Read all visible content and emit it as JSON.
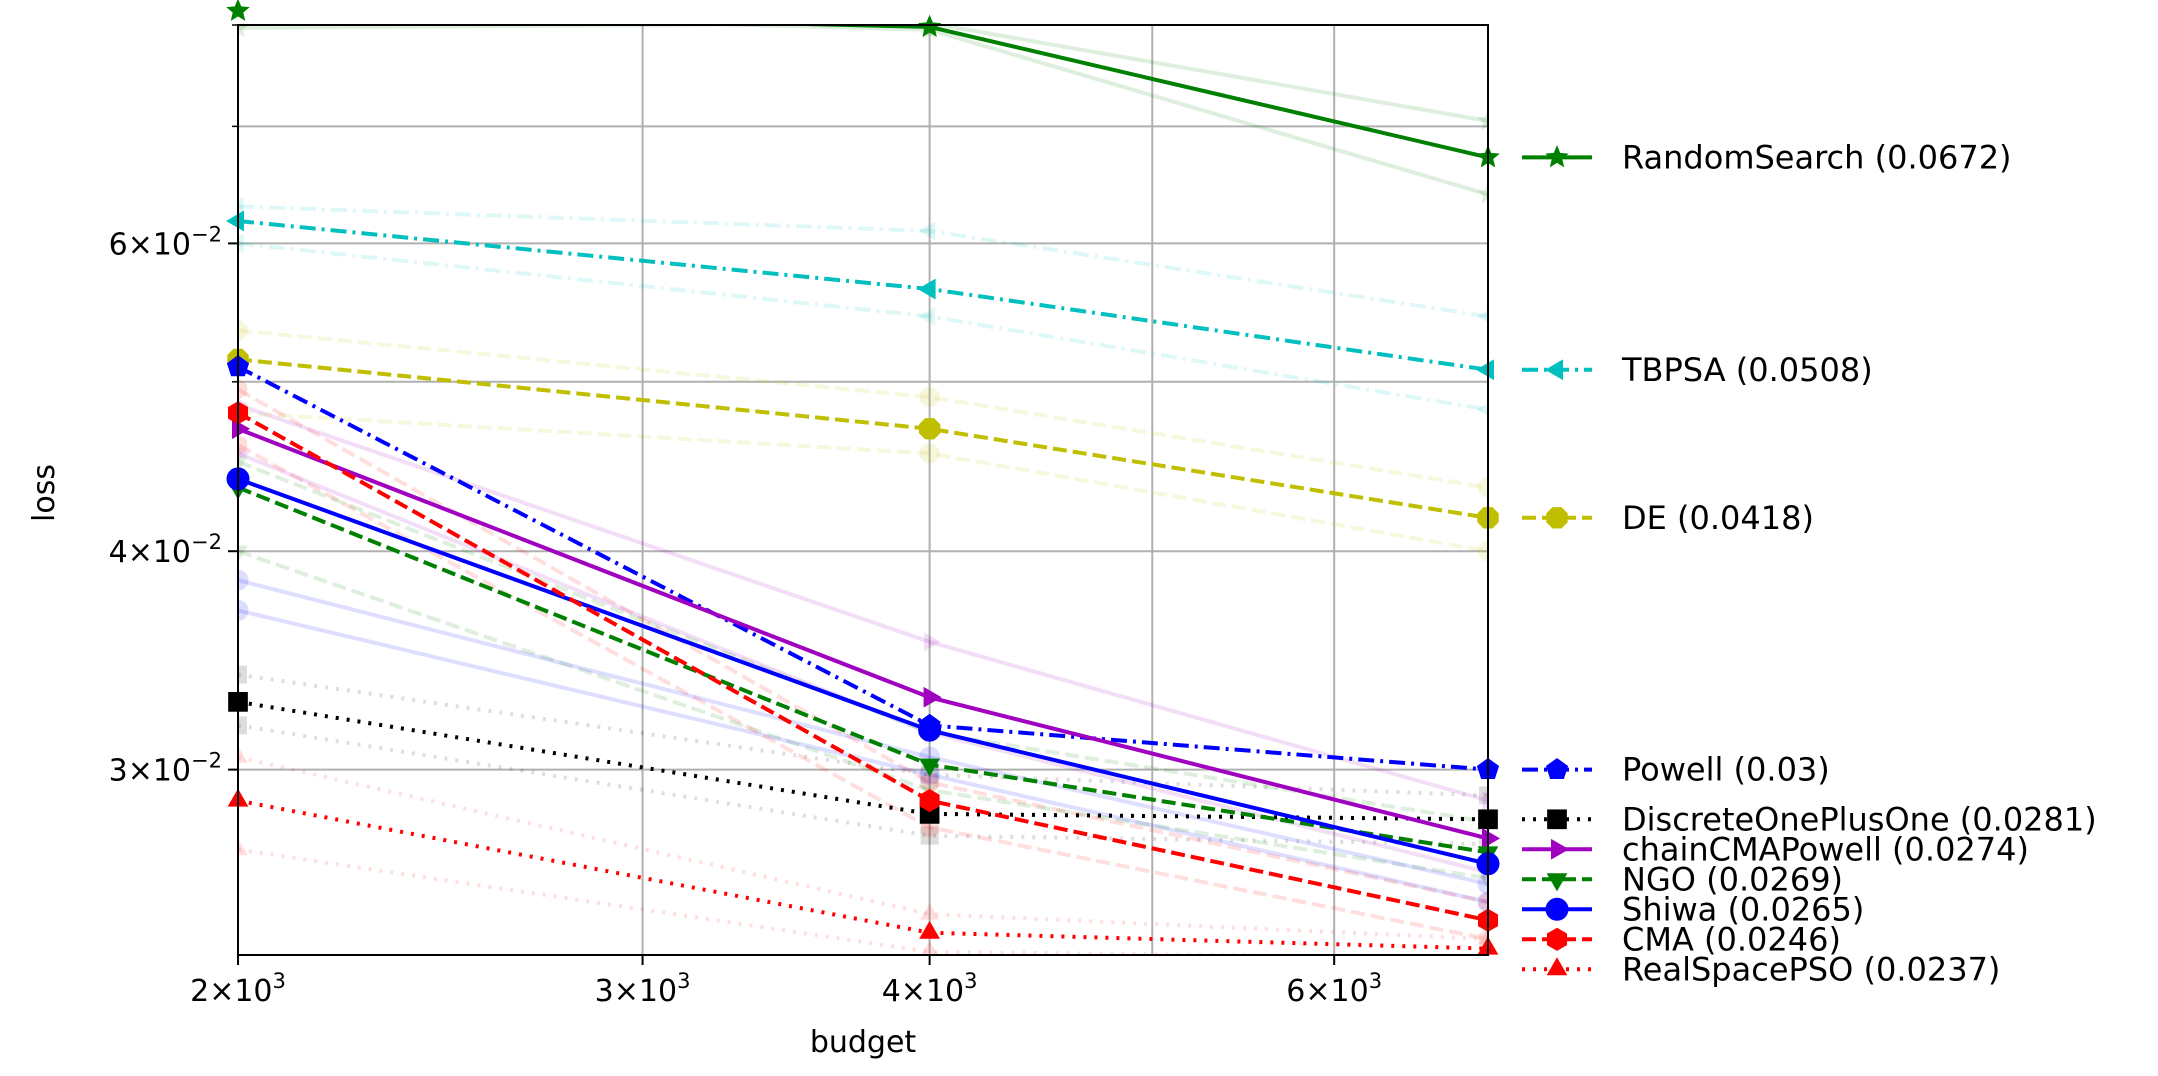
{
  "chart_data": {
    "type": "line",
    "title": "",
    "xlabel": "budget",
    "ylabel": "loss",
    "xscale": "log",
    "yscale": "log",
    "xlim": [
      2000,
      7000
    ],
    "ylim": [
      0.0235,
      0.08
    ],
    "grid": true,
    "legend_placement": "right-outside",
    "x": [
      2000,
      4000,
      7000
    ],
    "x_ticks": [
      {
        "value": 2000,
        "mantissa": "2",
        "exp": "3"
      },
      {
        "value": 3000,
        "mantissa": "3",
        "exp": "3"
      },
      {
        "value": 4000,
        "mantissa": "4",
        "exp": "3"
      },
      {
        "value": 6000,
        "mantissa": "6",
        "exp": "3"
      }
    ],
    "x_grid_values": [
      2000,
      3000,
      4000,
      5000,
      6000
    ],
    "y_ticks": [
      {
        "value": 0.03,
        "mantissa": "3",
        "exp": "−2"
      },
      {
        "value": 0.04,
        "mantissa": "4",
        "exp": "−2"
      },
      {
        "value": 0.06,
        "mantissa": "6",
        "exp": "−2"
      }
    ],
    "y_grid_values": [
      0.03,
      0.04,
      0.05,
      0.06,
      0.07,
      0.08
    ],
    "series": [
      {
        "name": "RandomSearch (0.0672)",
        "color": "#008000",
        "dash": "solid",
        "marker": "star",
        "values": [
          0.0815,
          0.0798,
          0.0672
        ],
        "legend_value": 0.0672,
        "faint": [
          [
            0.0797,
            0.0802,
            0.0705
          ],
          [
            0.0815,
            0.0795,
            0.064
          ]
        ]
      },
      {
        "name": "TBPSA (0.0508)",
        "color": "#00bfbf",
        "dash": "dashdot",
        "marker": "triangle-left",
        "values": [
          0.0618,
          0.0565,
          0.0508
        ],
        "legend_value": 0.0508,
        "faint": [
          [
            0.063,
            0.061,
            0.0545
          ],
          [
            0.06,
            0.0545,
            0.0482
          ]
        ]
      },
      {
        "name": "DE (0.0418)",
        "color": "#bfbf00",
        "dash": "dashed",
        "marker": "octagon",
        "values": [
          0.0515,
          0.047,
          0.0418
        ],
        "legend_value": 0.0418,
        "faint": [
          [
            0.0535,
            0.049,
            0.0435
          ],
          [
            0.048,
            0.0455,
            0.04
          ]
        ]
      },
      {
        "name": "Powell (0.03)",
        "color": "#0000ff",
        "dash": "dashdot",
        "marker": "pentagon",
        "values": [
          0.051,
          0.0318,
          0.03
        ],
        "legend_value": 0.03,
        "faint": []
      },
      {
        "name": "DiscreteOnePlusOne (0.0281)",
        "color": "#000000",
        "dash": "dotted",
        "marker": "square",
        "values": [
          0.0328,
          0.0283,
          0.0281
        ],
        "legend_value": 0.0281,
        "faint": [
          [
            0.034,
            0.0298,
            0.029
          ],
          [
            0.0318,
            0.0275,
            0.0272
          ]
        ]
      },
      {
        "name": "chainCMAPowell (0.0274)",
        "color": "#a000c0",
        "dash": "solid",
        "marker": "triangle-right",
        "values": [
          0.047,
          0.033,
          0.0274
        ],
        "legend_value": 0.0274,
        "faint": [
          [
            0.0485,
            0.0355,
            0.0288
          ],
          [
            0.0455,
            0.0315,
            0.0262
          ]
        ]
      },
      {
        "name": "NGO (0.0269)",
        "color": "#008000",
        "dash": "dashed",
        "marker": "triangle-down",
        "values": [
          0.0435,
          0.0302,
          0.0269
        ],
        "legend_value": 0.0269,
        "faint": [
          [
            0.045,
            0.0315,
            0.028
          ],
          [
            0.04,
            0.0292,
            0.026
          ]
        ]
      },
      {
        "name": "Shiwa (0.0265)",
        "color": "#0000ff",
        "dash": "solid",
        "marker": "circle",
        "values": [
          0.044,
          0.0316,
          0.0265
        ],
        "legend_value": 0.0265,
        "faint": [
          [
            0.0385,
            0.0305,
            0.0258
          ],
          [
            0.037,
            0.0298,
            0.0252
          ]
        ]
      },
      {
        "name": "CMA (0.0246)",
        "color": "#ff0000",
        "dash": "dashed",
        "marker": "hexagon",
        "values": [
          0.048,
          0.0288,
          0.0246
        ],
        "legend_value": 0.0246,
        "faint": [
          [
            0.046,
            0.0278,
            0.024
          ],
          [
            0.0495,
            0.0295,
            0.0252
          ]
        ]
      },
      {
        "name": "RealSpacePSO (0.0237)",
        "color": "#ff0000",
        "dash": "dotted",
        "marker": "triangle-up",
        "values": [
          0.0288,
          0.0242,
          0.0237
        ],
        "legend_value": 0.0237,
        "faint": [
          [
            0.0305,
            0.0248,
            0.024
          ],
          [
            0.027,
            0.0236,
            0.0234
          ]
        ]
      }
    ]
  }
}
